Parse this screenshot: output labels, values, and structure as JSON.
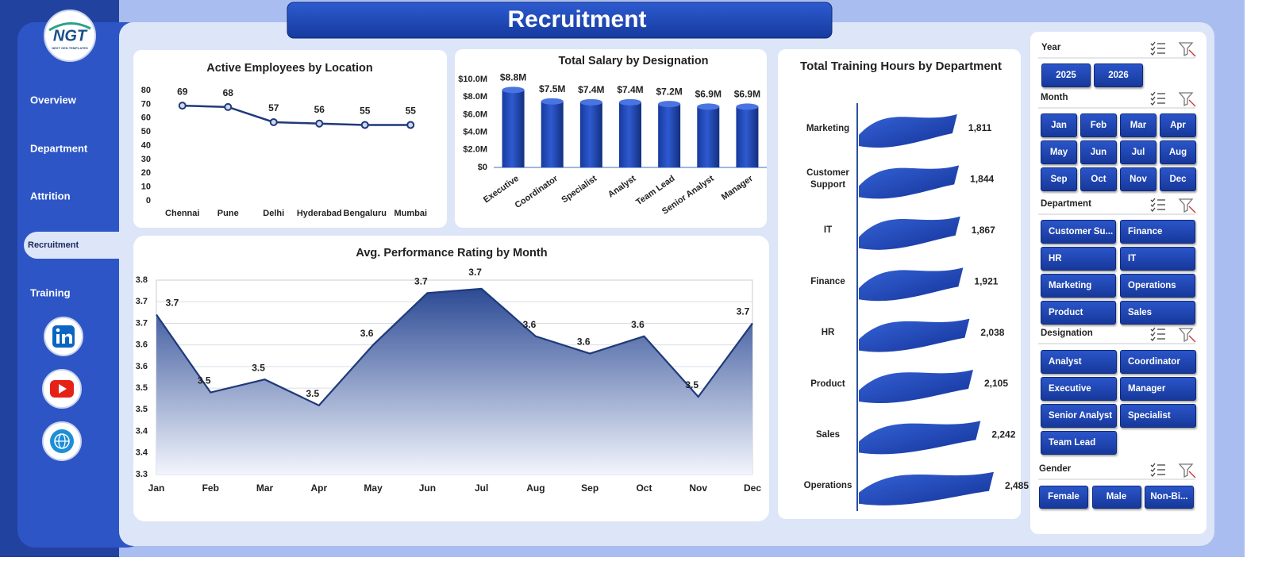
{
  "header": {
    "title": "Recruitment"
  },
  "logo": {
    "text": "NGT",
    "subtitle": "NEXT GEN TEMPLATES"
  },
  "nav": {
    "items": [
      "Overview",
      "Department",
      "Attrition",
      "Recruitment",
      "Training"
    ],
    "active": "Recruitment"
  },
  "chart_data": [
    {
      "type": "line",
      "title": "Active Employees by Location",
      "categories": [
        "Chennai",
        "Pune",
        "Delhi",
        "Hyderabad",
        "Bengaluru",
        "Mumbai"
      ],
      "values": [
        69,
        68,
        57,
        56,
        55,
        55
      ],
      "color": "#1f3a7a",
      "ylim": [
        0,
        80
      ],
      "yticks": [
        0,
        10,
        20,
        30,
        40,
        50,
        60,
        70,
        80
      ]
    },
    {
      "type": "bar",
      "title": "Total Salary by Designation",
      "categories": [
        "Executive",
        "Coordinator",
        "Specialist",
        "Analyst",
        "Team Lead",
        "Senior Analyst",
        "Manager"
      ],
      "values": [
        8800000,
        7500000,
        7400000,
        7400000,
        7200000,
        6900000,
        6900000
      ],
      "value_labels": [
        "$8.8M",
        "$7.5M",
        "$7.4M",
        "$7.4M",
        "$7.2M",
        "$6.9M",
        "$6.9M"
      ],
      "color": "#1f45b5",
      "ylim": [
        0,
        10000000
      ],
      "yticks": [
        {
          "value": 0,
          "label": "$0"
        },
        {
          "value": 2000000,
          "label": "$2.0M"
        },
        {
          "value": 4000000,
          "label": "$4.0M"
        },
        {
          "value": 6000000,
          "label": "$6.0M"
        },
        {
          "value": 8000000,
          "label": "$8.0M"
        },
        {
          "value": 10000000,
          "label": "$10.0M"
        }
      ]
    },
    {
      "type": "area",
      "title": "Avg. Performance Rating by Month",
      "categories": [
        "Jan",
        "Feb",
        "Mar",
        "Apr",
        "May",
        "Jun",
        "Jul",
        "Aug",
        "Sep",
        "Oct",
        "Nov",
        "Dec"
      ],
      "values": [
        3.67,
        3.49,
        3.52,
        3.46,
        3.6,
        3.72,
        3.73,
        3.62,
        3.58,
        3.62,
        3.48,
        3.65
      ],
      "value_labels": [
        "3.7",
        "3.5",
        "3.5",
        "3.5",
        "3.6",
        "3.7",
        "3.7",
        "3.6",
        "3.6",
        "3.6",
        "3.5",
        "3.7"
      ],
      "color": "#1f3a7a",
      "ylim": [
        3.3,
        3.75
      ],
      "grid": true,
      "yticks": [
        3.3,
        {
          "value": 3.35,
          "label": "3.4"
        },
        3.4,
        {
          "value": 3.45,
          "label": "3.5"
        },
        3.5,
        {
          "value": 3.55,
          "label": "3.6"
        },
        3.6,
        {
          "value": 3.65,
          "label": "3.7"
        },
        3.7,
        {
          "value": 3.75,
          "label": "3.8"
        }
      ]
    },
    {
      "type": "hbar",
      "title": "Total Training Hours by Department",
      "categories": [
        "Marketing",
        "Customer Support",
        "IT",
        "Finance",
        "HR",
        "Product",
        "Sales",
        "Operations"
      ],
      "values": [
        1811,
        1844,
        1867,
        1921,
        2038,
        2105,
        2242,
        2485
      ],
      "value_labels": [
        "1,811",
        "1,844",
        "1,867",
        "1,921",
        "2,038",
        "2,105",
        "2,242",
        "2,485"
      ],
      "color": "#1f45b5"
    }
  ],
  "slicers": [
    {
      "title": "Year",
      "items": [
        "2025",
        "2026"
      ]
    },
    {
      "title": "Month",
      "items": [
        "Jan",
        "Feb",
        "Mar",
        "Apr",
        "May",
        "Jun",
        "Jul",
        "Aug",
        "Sep",
        "Oct",
        "Nov",
        "Dec"
      ]
    },
    {
      "title": "Department",
      "items": [
        "Customer Su...",
        "Finance",
        "HR",
        "IT",
        "Marketing",
        "Operations",
        "Product",
        "Sales"
      ]
    },
    {
      "title": "Designation",
      "items": [
        "Analyst",
        "Coordinator",
        "Executive",
        "Manager",
        "Senior Analyst",
        "Specialist",
        "Team Lead"
      ]
    },
    {
      "title": "Gender",
      "items": [
        "Female",
        "Male",
        "Non-Bi..."
      ]
    }
  ]
}
